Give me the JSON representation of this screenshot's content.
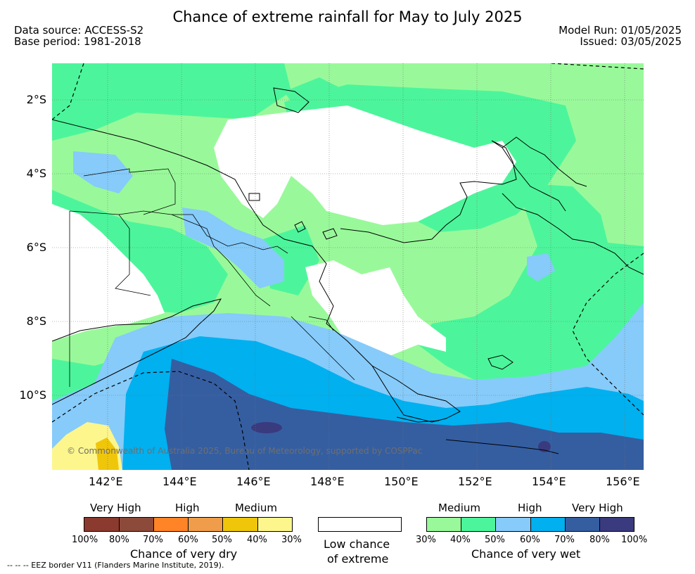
{
  "title": "Chance of extreme rainfall for May to July 2025",
  "data_source": "Data source: ACCESS-S2",
  "base_period": "Base period: 1981-2018",
  "model_run": "Model Run: 01/05/2025",
  "issued": "Issued: 03/05/2025",
  "lat_labels": [
    "2°S",
    "4°S",
    "6°S",
    "8°S",
    "10°S"
  ],
  "lon_labels": [
    "142°E",
    "144°E",
    "146°E",
    "148°E",
    "150°E",
    "152°E",
    "154°E",
    "156°E"
  ],
  "copyright": "© Commonwealth of Australia 2025, Bureau of Meteorology, supported by COSPPac",
  "dry_legend": {
    "caption": "Chance of very dry",
    "headings": [
      "Very High",
      "High",
      "Medium"
    ],
    "ticks": [
      "100%",
      "80%",
      "70%",
      "60%",
      "50%",
      "40%",
      "30%"
    ],
    "colors": [
      "#8b3a2f",
      "#8c4a3a",
      "#ff8427",
      "#f09d4b",
      "#efc60a",
      "#fdf68d"
    ]
  },
  "neutral_legend": {
    "caption_line1": "Low chance",
    "caption_line2": "of extreme",
    "color": "#ffffff"
  },
  "wet_legend": {
    "caption": "Chance of very wet",
    "headings": [
      "Medium",
      "High",
      "Very High"
    ],
    "ticks": [
      "30%",
      "40%",
      "50%",
      "60%",
      "70%",
      "80%",
      "100%"
    ],
    "colors": [
      "#99f99a",
      "#4cf59b",
      "#86cbfa",
      "#00b0ef",
      "#355ea1",
      "#3a3a7e"
    ]
  },
  "footnote": "--  --  -- EEZ border V11 (Flanders Marine Institute, 2019)."
}
